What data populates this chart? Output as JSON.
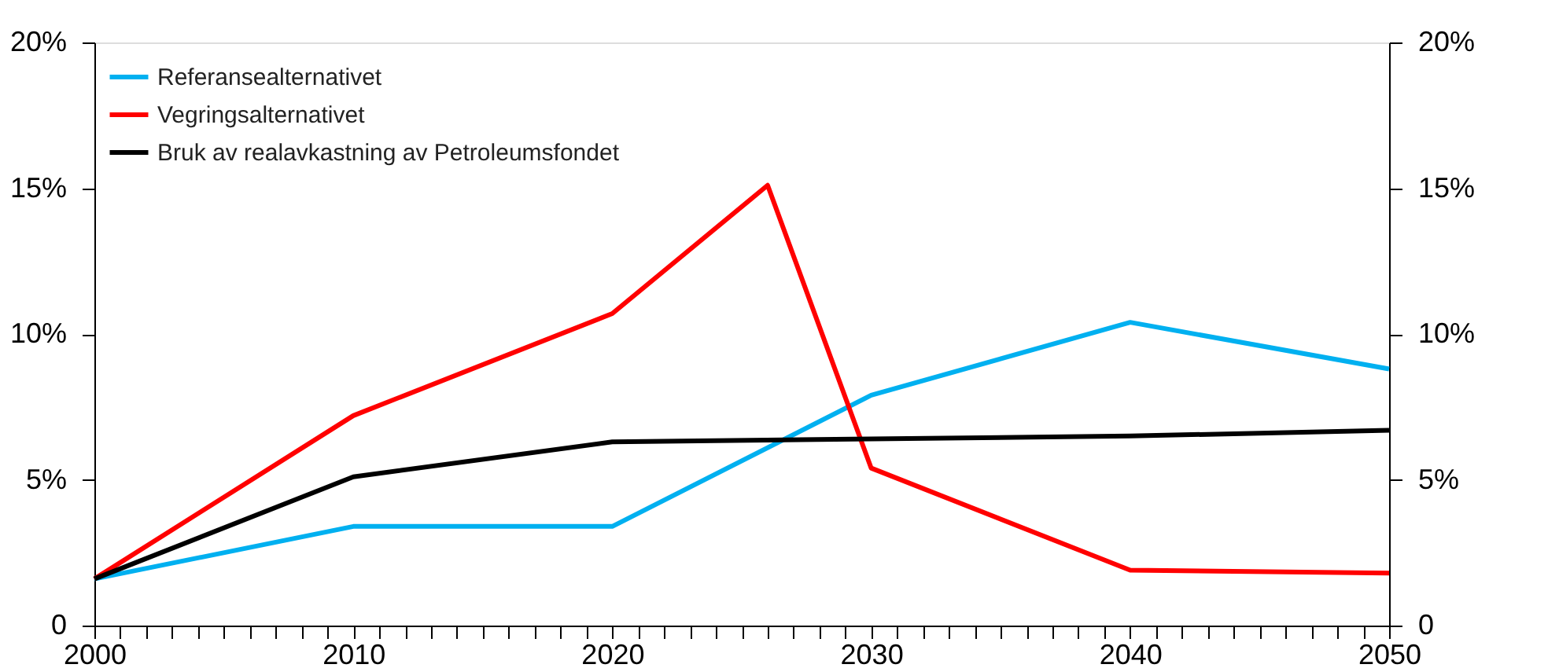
{
  "chart_data": {
    "type": "line",
    "xlim": [
      2000,
      2050
    ],
    "xticks": [
      2000,
      {
        "value": 2001,
        "label": null
      },
      {
        "value": 2002,
        "label": null
      },
      {
        "value": 2003,
        "label": null
      },
      {
        "value": 2004,
        "label": null
      },
      {
        "value": 2005,
        "label": null
      },
      {
        "value": 2006,
        "label": null
      },
      {
        "value": 2007,
        "label": null
      },
      {
        "value": 2008,
        "label": null
      },
      {
        "value": 2009,
        "label": null
      },
      2010,
      {
        "value": 2011,
        "label": null
      },
      {
        "value": 2012,
        "label": null
      },
      {
        "value": 2013,
        "label": null
      },
      {
        "value": 2014,
        "label": null
      },
      {
        "value": 2015,
        "label": null
      },
      {
        "value": 2016,
        "label": null
      },
      {
        "value": 2017,
        "label": null
      },
      {
        "value": 2018,
        "label": null
      },
      {
        "value": 2019,
        "label": null
      },
      2020,
      {
        "value": 2021,
        "label": null
      },
      {
        "value": 2022,
        "label": null
      },
      {
        "value": 2023,
        "label": null
      },
      {
        "value": 2024,
        "label": null
      },
      {
        "value": 2025,
        "label": null
      },
      {
        "value": 2026,
        "label": null
      },
      {
        "value": 2027,
        "label": null
      },
      {
        "value": 2028,
        "label": null
      },
      {
        "value": 2029,
        "label": null
      },
      2030,
      {
        "value": 2031,
        "label": null
      },
      {
        "value": 2032,
        "label": null
      },
      {
        "value": 2033,
        "label": null
      },
      {
        "value": 2034,
        "label": null
      },
      {
        "value": 2035,
        "label": null
      },
      {
        "value": 2036,
        "label": null
      },
      {
        "value": 2037,
        "label": null
      },
      {
        "value": 2038,
        "label": null
      },
      {
        "value": 2039,
        "label": null
      },
      2040,
      {
        "value": 2041,
        "label": null
      },
      {
        "value": 2042,
        "label": null
      },
      {
        "value": 2043,
        "label": null
      },
      {
        "value": 2044,
        "label": null
      },
      {
        "value": 2045,
        "label": null
      },
      {
        "value": 2046,
        "label": null
      },
      {
        "value": 2047,
        "label": null
      },
      {
        "value": 2048,
        "label": null
      },
      {
        "value": 2049,
        "label": null
      },
      2050
    ],
    "ylim": [
      0,
      20
    ],
    "yticks": [
      0,
      {
        "value": 5,
        "label": "5%"
      },
      {
        "value": 10,
        "label": "10%"
      },
      {
        "value": 15,
        "label": "15%"
      },
      {
        "value": 20,
        "label": "20%"
      }
    ],
    "y2lim": [
      0,
      20
    ],
    "y2ticks": [
      0,
      {
        "value": 5,
        "label": "5%"
      },
      {
        "value": 10,
        "label": "10%"
      },
      {
        "value": 15,
        "label": "15%"
      },
      {
        "value": 20,
        "label": "20%"
      }
    ],
    "grid": false,
    "legend": "top left",
    "series": [
      {
        "name": "Referansealternativet",
        "color": "#00b0f0",
        "x": [
          2000,
          2010,
          2020,
          2030,
          2040,
          2050
        ],
        "values": [
          1.6,
          3.4,
          3.4,
          7.9,
          10.4,
          8.8
        ]
      },
      {
        "name": "Vegringsalternativet",
        "color": "#ff0000",
        "x": [
          2000,
          2010,
          2020,
          2026,
          2030,
          2040,
          2050
        ],
        "values": [
          1.6,
          7.2,
          10.7,
          15.1,
          5.4,
          1.9,
          1.8
        ]
      },
      {
        "name": "Bruk av realavkastning av Petroleumsfondet",
        "color": "#000000",
        "x": [
          2000,
          2010,
          2020,
          2030,
          2040,
          2050
        ],
        "values": [
          1.6,
          5.1,
          6.3,
          6.4,
          6.5,
          6.7
        ]
      }
    ]
  }
}
